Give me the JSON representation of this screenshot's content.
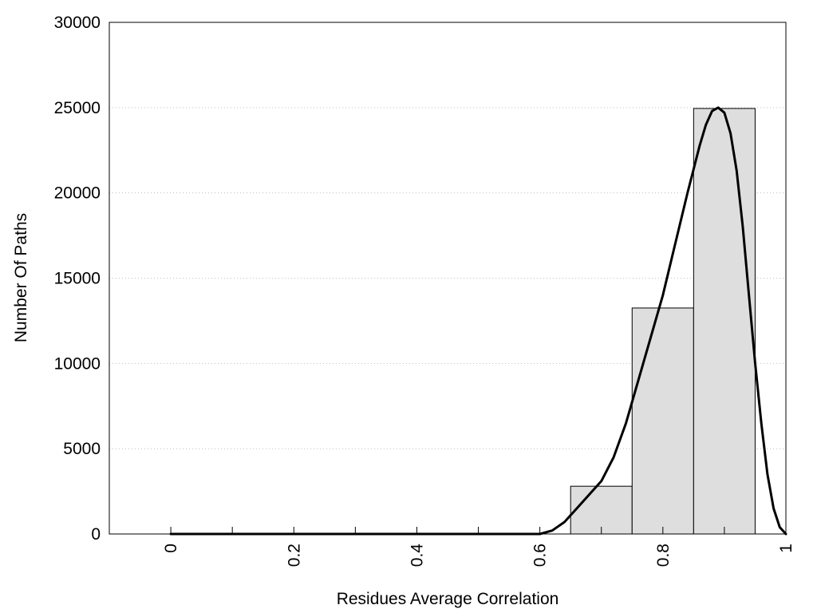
{
  "chart_data": {
    "type": "bar",
    "title": "",
    "xlabel": "Residues Average Correlation",
    "ylabel": "Number Of Paths",
    "xlim": [
      -0.1,
      1.0
    ],
    "ylim": [
      0,
      30000
    ],
    "xticks": [
      0,
      0.2,
      0.4,
      0.6,
      0.8,
      1
    ],
    "xtick_labels": [
      "0",
      "0.2",
      "0.4",
      "0.6",
      "0.8",
      "1"
    ],
    "xtick_minor": [
      0.1,
      0.3,
      0.5,
      0.7,
      0.9
    ],
    "yticks": [
      0,
      5000,
      10000,
      15000,
      20000,
      25000,
      30000
    ],
    "ytick_labels": [
      "0",
      "5000",
      "10000",
      "15000",
      "20000",
      "25000",
      "30000"
    ],
    "grid": "horizontal-dotted",
    "bars": [
      {
        "x_start": 0.65,
        "x_end": 0.75,
        "value": 2800
      },
      {
        "x_start": 0.75,
        "x_end": 0.85,
        "value": 13250
      },
      {
        "x_start": 0.85,
        "x_end": 0.95,
        "value": 24950
      }
    ],
    "curve": {
      "x": [
        0,
        0.55,
        0.6,
        0.62,
        0.64,
        0.66,
        0.68,
        0.7,
        0.72,
        0.74,
        0.76,
        0.78,
        0.8,
        0.82,
        0.84,
        0.86,
        0.87,
        0.88,
        0.89,
        0.9,
        0.91,
        0.92,
        0.93,
        0.94,
        0.95,
        0.96,
        0.97,
        0.98,
        0.99,
        1.0
      ],
      "y": [
        0,
        0,
        0,
        200,
        700,
        1500,
        2300,
        3100,
        4500,
        6500,
        9000,
        11500,
        14000,
        17000,
        20000,
        22800,
        24000,
        24800,
        25000,
        24700,
        23500,
        21300,
        18000,
        14000,
        10000,
        6500,
        3500,
        1500,
        400,
        0
      ]
    },
    "colors": {
      "bar_fill": "#dedede",
      "bar_edge": "#000000",
      "curve": "#000000",
      "grid": "#bdbdbd"
    }
  }
}
